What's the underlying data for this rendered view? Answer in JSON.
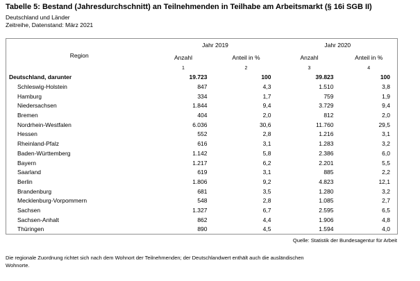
{
  "header": {
    "title": "Tabelle 5: Bestand (Jahresdurchschnitt) an Teilnehmenden in Teilhabe am Arbeitsmarkt (§ 16i SGB II)",
    "subtitle1": "Deutschland und Länder",
    "subtitle2": "Zeitreihe, Datenstand: März 2021"
  },
  "table": {
    "region_header": "Region",
    "year_groups": [
      "Jahr 2019",
      "Jahr 2020"
    ],
    "sub_headers": [
      "Anzahl",
      "Anteil in %",
      "Anzahl",
      "Anteil in %"
    ],
    "column_numbers": [
      "1",
      "2",
      "3",
      "4"
    ],
    "rows": [
      {
        "region": "Deutschland, darunter",
        "bold": true,
        "indent": false,
        "values": [
          "19.723",
          "100",
          "39.823",
          "100"
        ]
      },
      {
        "region": "Schleswig-Holstein",
        "bold": false,
        "indent": true,
        "values": [
          "847",
          "4,3",
          "1.510",
          "3,8"
        ]
      },
      {
        "region": "Hamburg",
        "bold": false,
        "indent": true,
        "values": [
          "334",
          "1,7",
          "759",
          "1,9"
        ]
      },
      {
        "region": "Niedersachsen",
        "bold": false,
        "indent": true,
        "values": [
          "1.844",
          "9,4",
          "3.729",
          "9,4"
        ]
      },
      {
        "region": "Bremen",
        "bold": false,
        "indent": true,
        "values": [
          "404",
          "2,0",
          "812",
          "2,0"
        ]
      },
      {
        "region": "Nordrhein-Westfalen",
        "bold": false,
        "indent": true,
        "values": [
          "6.036",
          "30,6",
          "11.760",
          "29,5"
        ]
      },
      {
        "region": "Hessen",
        "bold": false,
        "indent": true,
        "values": [
          "552",
          "2,8",
          "1.216",
          "3,1"
        ]
      },
      {
        "region": "Rheinland-Pfalz",
        "bold": false,
        "indent": true,
        "values": [
          "616",
          "3,1",
          "1.283",
          "3,2"
        ]
      },
      {
        "region": "Baden-Württemberg",
        "bold": false,
        "indent": true,
        "values": [
          "1.142",
          "5,8",
          "2.386",
          "6,0"
        ]
      },
      {
        "region": "Bayern",
        "bold": false,
        "indent": true,
        "values": [
          "1.217",
          "6,2",
          "2.201",
          "5,5"
        ]
      },
      {
        "region": "Saarland",
        "bold": false,
        "indent": true,
        "values": [
          "619",
          "3,1",
          "885",
          "2,2"
        ]
      },
      {
        "region": "Berlin",
        "bold": false,
        "indent": true,
        "values": [
          "1.806",
          "9,2",
          "4.823",
          "12,1"
        ]
      },
      {
        "region": "Brandenburg",
        "bold": false,
        "indent": true,
        "values": [
          "681",
          "3,5",
          "1.280",
          "3,2"
        ]
      },
      {
        "region": "Mecklenburg-Vorpommern",
        "bold": false,
        "indent": true,
        "values": [
          "548",
          "2,8",
          "1.085",
          "2,7"
        ]
      },
      {
        "region": "Sachsen",
        "bold": false,
        "indent": true,
        "values": [
          "1.327",
          "6,7",
          "2.595",
          "6,5"
        ]
      },
      {
        "region": "Sachsen-Anhalt",
        "bold": false,
        "indent": true,
        "values": [
          "862",
          "4,4",
          "1.906",
          "4,8"
        ]
      },
      {
        "region": "Thüringen",
        "bold": false,
        "indent": true,
        "values": [
          "890",
          "4,5",
          "1.594",
          "4,0"
        ]
      }
    ]
  },
  "source": "Quelle: Statistik der Bundesagentur für Arbeit",
  "footnote": {
    "line1": "Die regionale Zuordnung richtet sich nach dem Wohnort der Teilnehmenden; der Deutschlandwert enthält auch die ausländischen",
    "line2": "Wohnorte."
  }
}
